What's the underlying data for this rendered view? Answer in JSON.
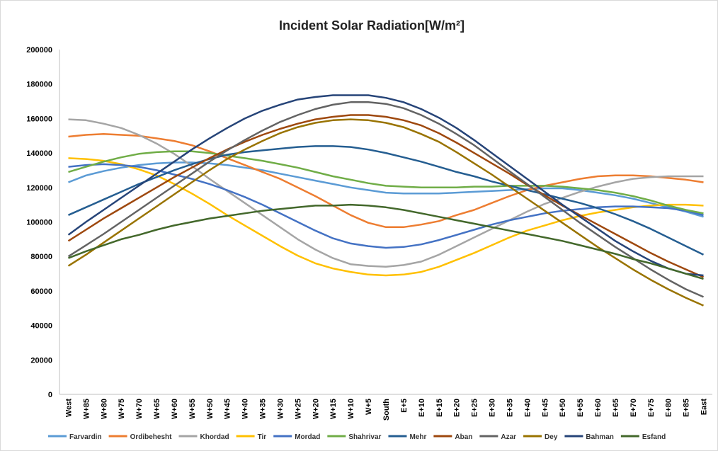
{
  "chart_data": {
    "type": "line",
    "title": "Incident Solar Radiation[W/m²]",
    "categories": [
      "West",
      "W+85",
      "W+80",
      "W+75",
      "W+70",
      "W+65",
      "W+60",
      "W+55",
      "W+50",
      "W+45",
      "W+40",
      "W+35",
      "W+30",
      "W+25",
      "W+20",
      "W+15",
      "W+10",
      "W+5",
      "South",
      "E+5",
      "E+10",
      "E+15",
      "E+20",
      "E+25",
      "E+30",
      "E+35",
      "E+40",
      "E+45",
      "E+50",
      "E+55",
      "E+60",
      "E+65",
      "E+70",
      "E+75",
      "E+80",
      "E+85",
      "East"
    ],
    "ylim": [
      0,
      200000
    ],
    "yticks": [
      0,
      20000,
      40000,
      60000,
      80000,
      100000,
      120000,
      140000,
      160000,
      180000,
      200000
    ],
    "grid": false,
    "legend": "bottom",
    "series": [
      {
        "name": "Farvardin",
        "color": "#5b9bd5",
        "values": [
          123000,
          127000,
          129500,
          131500,
          133000,
          134000,
          134500,
          134500,
          134000,
          133000,
          131500,
          130000,
          128000,
          126000,
          124000,
          122000,
          120000,
          118500,
          117000,
          116500,
          116500,
          116500,
          117000,
          117500,
          118000,
          118500,
          119000,
          119500,
          119500,
          118500,
          117000,
          115500,
          113500,
          111000,
          108500,
          106000,
          103000
        ]
      },
      {
        "name": "Ordibehesht",
        "color": "#ed7d31",
        "values": [
          149500,
          150500,
          151000,
          150500,
          150000,
          148500,
          147000,
          144500,
          141000,
          137000,
          133000,
          129000,
          125000,
          120000,
          115000,
          109500,
          104000,
          99500,
          97000,
          97000,
          98500,
          100500,
          104000,
          107000,
          111000,
          115000,
          118500,
          121000,
          123000,
          125000,
          126500,
          127000,
          127000,
          126500,
          125500,
          124500,
          123000
        ]
      },
      {
        "name": "Khordad",
        "color": "#a5a5a5",
        "values": [
          159500,
          159000,
          157000,
          154500,
          150500,
          145500,
          139500,
          132500,
          125000,
          118000,
          111000,
          104000,
          97000,
          90000,
          84000,
          79000,
          75500,
          74500,
          74000,
          75000,
          77000,
          81000,
          86000,
          91000,
          96000,
          101000,
          106000,
          110500,
          114000,
          117500,
          120500,
          123000,
          125000,
          126000,
          126500,
          126500,
          126500
        ]
      },
      {
        "name": "Tir",
        "color": "#ffc000",
        "values": [
          137000,
          136500,
          135500,
          133500,
          130500,
          127000,
          122000,
          116500,
          110500,
          104000,
          98000,
          92000,
          86000,
          80500,
          76000,
          73000,
          71000,
          69500,
          69000,
          69500,
          71000,
          74000,
          78000,
          82000,
          86500,
          91000,
          95000,
          98000,
          101000,
          103500,
          105500,
          107000,
          108500,
          109500,
          110000,
          110000,
          109500
        ]
      },
      {
        "name": "Mordad",
        "color": "#4472c4",
        "values": [
          132000,
          133000,
          133500,
          133000,
          132000,
          130000,
          127500,
          125000,
          122000,
          118500,
          114500,
          110000,
          105000,
          100000,
          95000,
          90500,
          87500,
          86000,
          85000,
          85500,
          87000,
          89500,
          92500,
          95500,
          98500,
          101000,
          103000,
          105000,
          106500,
          107500,
          108500,
          109000,
          109000,
          108500,
          108000,
          106500,
          104000
        ]
      },
      {
        "name": "Shahrivar",
        "color": "#70ad47",
        "values": [
          129000,
          132000,
          135000,
          137500,
          139500,
          140500,
          141000,
          141000,
          140000,
          138500,
          137000,
          135500,
          133500,
          131500,
          129000,
          126500,
          124500,
          122500,
          121000,
          120500,
          120000,
          120000,
          120000,
          120500,
          120500,
          121000,
          121000,
          121000,
          120500,
          119500,
          118500,
          117000,
          115000,
          112500,
          109500,
          107000,
          105000
        ]
      },
      {
        "name": "Mehr",
        "color": "#255e91",
        "values": [
          104000,
          108500,
          113000,
          117500,
          122000,
          126000,
          130000,
          133500,
          136500,
          139000,
          140500,
          141500,
          142500,
          143500,
          144000,
          144000,
          143500,
          142000,
          140000,
          137500,
          135000,
          132000,
          129000,
          126500,
          123500,
          121000,
          118500,
          116000,
          113500,
          111000,
          108000,
          104500,
          100500,
          96000,
          91000,
          86000,
          81000
        ]
      },
      {
        "name": "Aban",
        "color": "#9e480e",
        "values": [
          89000,
          95500,
          102000,
          108000,
          114000,
          120000,
          126000,
          131500,
          137000,
          142000,
          146500,
          150500,
          154000,
          157000,
          159500,
          161000,
          162000,
          162000,
          161000,
          159000,
          156000,
          151500,
          146000,
          140000,
          134000,
          128000,
          121500,
          115500,
          109500,
          104000,
          98500,
          93000,
          87500,
          82000,
          77000,
          72500,
          68000
        ]
      },
      {
        "name": "Azar",
        "color": "#636363",
        "values": [
          80000,
          86500,
          93000,
          100000,
          107000,
          114000,
          121000,
          128000,
          135000,
          141500,
          147500,
          153000,
          158000,
          162000,
          165500,
          168000,
          169500,
          169500,
          168500,
          166000,
          162000,
          157000,
          151000,
          144500,
          137000,
          129500,
          122000,
          114500,
          107000,
          99500,
          92500,
          85500,
          79000,
          72500,
          66500,
          61000,
          56500
        ]
      },
      {
        "name": "Dey",
        "color": "#997300",
        "values": [
          74500,
          81000,
          88000,
          95000,
          102000,
          109000,
          116000,
          123000,
          130000,
          136500,
          142000,
          147000,
          151500,
          155000,
          157500,
          159000,
          159500,
          159000,
          157500,
          155000,
          151000,
          146500,
          140500,
          134000,
          127500,
          120500,
          113500,
          106500,
          99500,
          92500,
          85500,
          79000,
          72500,
          66500,
          61000,
          56000,
          51500
        ]
      },
      {
        "name": "Bahman",
        "color": "#264478",
        "values": [
          92500,
          100000,
          107000,
          114000,
          121000,
          128000,
          135000,
          142000,
          148500,
          154500,
          160000,
          164500,
          168000,
          171000,
          172500,
          173500,
          173500,
          173500,
          172000,
          169500,
          165500,
          160500,
          154500,
          147500,
          140000,
          132500,
          125000,
          117500,
          110000,
          103000,
          96000,
          89000,
          83000,
          77500,
          73000,
          70000,
          69000
        ]
      },
      {
        "name": "Esfand",
        "color": "#43682b",
        "values": [
          79000,
          83000,
          86500,
          90000,
          92500,
          95500,
          98000,
          100000,
          102000,
          103500,
          105000,
          106500,
          107500,
          108500,
          109500,
          109500,
          110000,
          109500,
          108500,
          107000,
          105000,
          103000,
          101000,
          99000,
          97000,
          95000,
          93000,
          91000,
          89000,
          86500,
          84000,
          81500,
          78500,
          76000,
          73000,
          70000,
          67000
        ]
      }
    ]
  }
}
